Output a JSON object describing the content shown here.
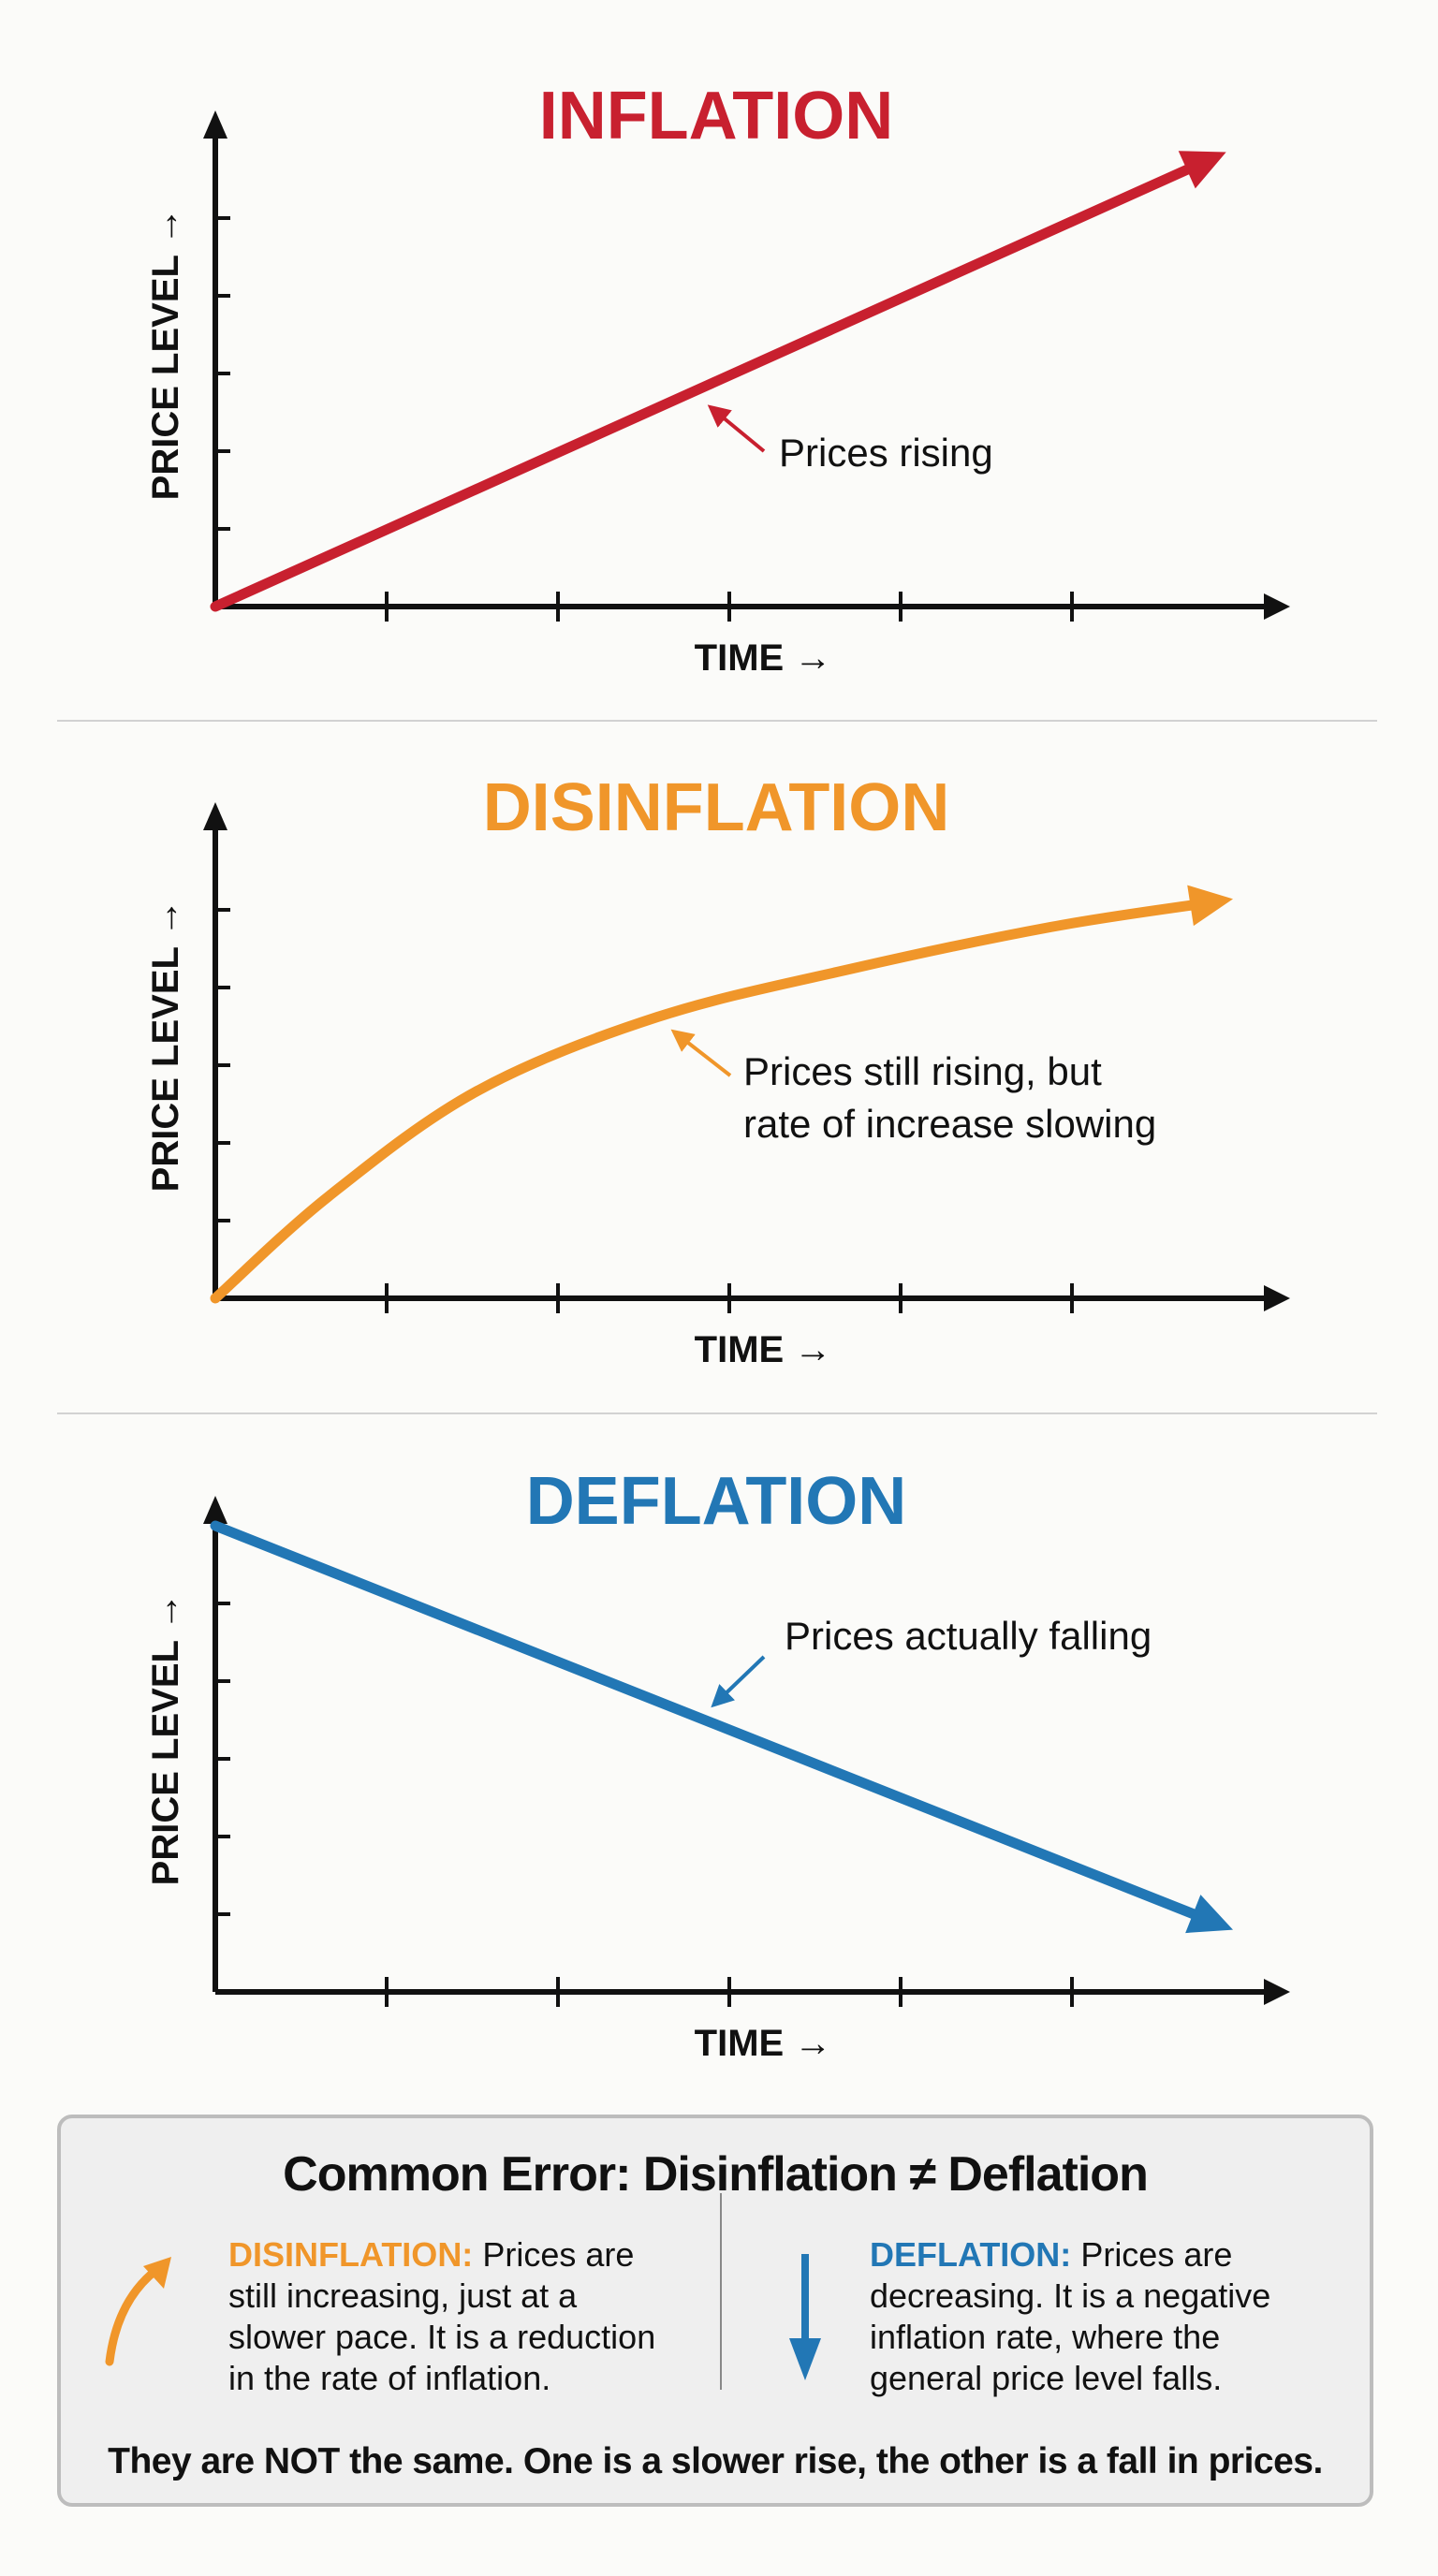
{
  "panels": [
    {
      "title": "INFLATION",
      "color": "#c8202f",
      "annotation": [
        "Prices rising"
      ]
    },
    {
      "title": "DISINFLATION",
      "color": "#f0962a",
      "annotation": [
        "Prices still rising, but",
        "rate of increase slowing"
      ]
    },
    {
      "title": "DEFLATION",
      "color": "#2277b5",
      "annotation": [
        "Prices actually falling"
      ]
    }
  ],
  "axes": {
    "ylabel": "PRICE LEVEL →",
    "xlabel": "TIME →"
  },
  "chart_data": [
    {
      "type": "line",
      "title": "INFLATION",
      "xlabel": "TIME →",
      "ylabel": "PRICE LEVEL →",
      "grid": false,
      "x": [
        0,
        5.9
      ],
      "y": [
        0,
        5.85
      ]
    },
    {
      "type": "line",
      "title": "DISINFLATION",
      "xlabel": "TIME →",
      "ylabel": "PRICE LEVEL →",
      "grid": false,
      "x": [
        0,
        0.66,
        1.53,
        2.58,
        3.73,
        4.88,
        5.94
      ],
      "y": [
        0,
        1.31,
        2.67,
        3.62,
        4.25,
        4.78,
        5.14
      ]
    },
    {
      "type": "line",
      "title": "DEFLATION",
      "xlabel": "TIME →",
      "ylabel": "PRICE LEVEL →",
      "grid": false,
      "x": [
        0,
        5.94
      ],
      "y": [
        6.0,
        0.8
      ]
    }
  ],
  "callout": {
    "title": "Common Error: Disinflation ≠ Deflation",
    "left_key": "DISINFLATION:",
    "left_lines": [
      "Prices are",
      "still increasing, just at a",
      "slower pace. It is a reduction",
      "in the rate of inflation."
    ],
    "right_key": "DEFLATION:",
    "right_lines": [
      "Prices are",
      "decreasing. It is a negative",
      "inflation rate, where the",
      "general price level falls."
    ],
    "footer": "They are NOT the same. One is a slower rise, the other is a fall in prices.",
    "left_color": "#f0962a",
    "right_color": "#2277b5"
  }
}
